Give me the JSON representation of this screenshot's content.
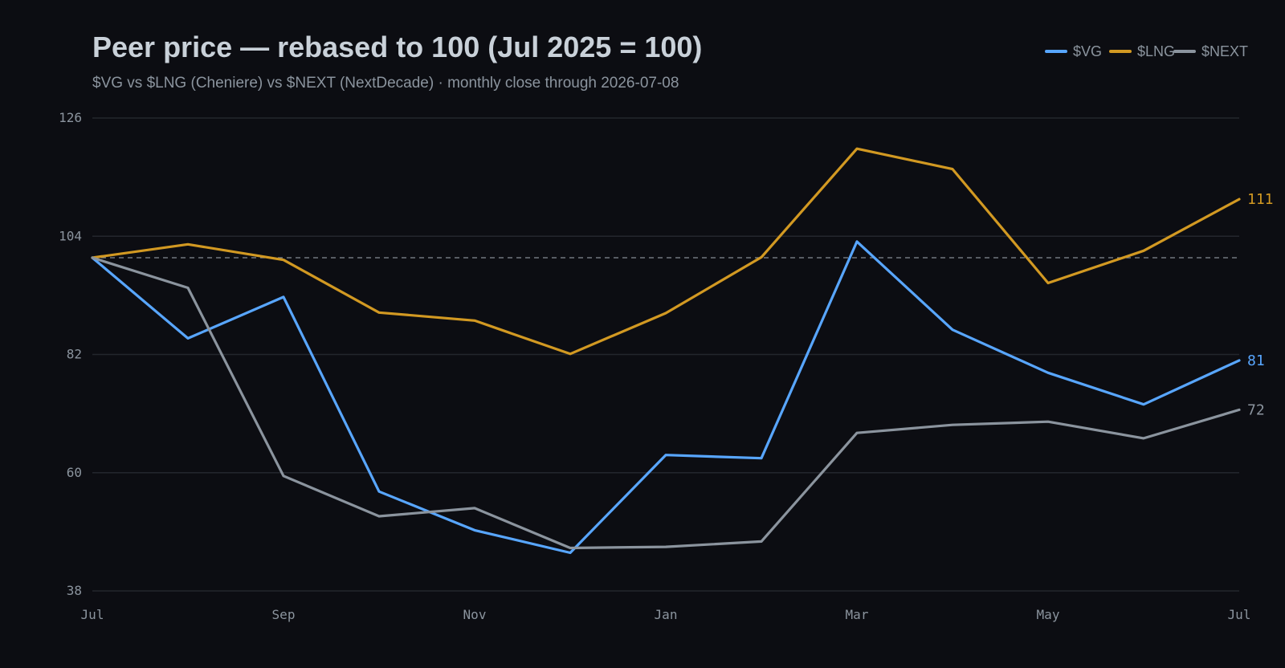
{
  "colors": {
    "background": "#0c0d12",
    "grid": "#23262d",
    "baseline": "#9aa1ab",
    "title": "#c9d1d9",
    "muted": "#8b949e"
  },
  "chart_data": {
    "type": "line",
    "title": "Peer price — rebased to 100 (Jul 2025 = 100)",
    "subtitle": "$VG vs $LNG (Cheniere) vs $NEXT (NextDecade) · monthly close through 2026-07-08",
    "x": [
      "2025-07",
      "2025-08",
      "2025-09",
      "2025-10",
      "2025-11",
      "2025-12",
      "2026-01",
      "2026-02",
      "2026-03",
      "2026-04",
      "2026-05",
      "2026-06",
      "2026-07"
    ],
    "x_ticks": [
      {
        "x": "2025-07",
        "label": "Jul"
      },
      {
        "x": "2025-09",
        "label": "Sep"
      },
      {
        "x": "2025-11",
        "label": "Nov"
      },
      {
        "x": "2026-01",
        "label": "Jan"
      },
      {
        "x": "2026-03",
        "label": "Mar"
      },
      {
        "x": "2026-05",
        "label": "May"
      },
      {
        "x": "2026-07",
        "label": "Jul"
      }
    ],
    "y_ticks": [
      38,
      60,
      82,
      104,
      126
    ],
    "ylim": [
      38,
      126
    ],
    "reference_line": 100,
    "grid": true,
    "legend_position": "top-right",
    "series": [
      {
        "name": "$VG",
        "color": "#58a6ff",
        "values": [
          100,
          85,
          92.7,
          56.5,
          49.3,
          45.1,
          63.3,
          62.7,
          103,
          86.6,
          78.6,
          72.7,
          80.9
        ],
        "end_label": "81"
      },
      {
        "name": "$LNG",
        "color": "#d29922",
        "values": [
          100,
          102.5,
          99.6,
          89.8,
          88.3,
          82.1,
          89.7,
          100.1,
          120.3,
          116.5,
          95.3,
          101.3,
          110.9
        ],
        "end_label": "111"
      },
      {
        "name": "$NEXT",
        "color": "#8b949e",
        "values": [
          100,
          94.4,
          59.4,
          51.9,
          53.4,
          46,
          46.2,
          47.2,
          67.4,
          68.9,
          69.5,
          66.4,
          71.7
        ],
        "end_label": "72"
      }
    ]
  }
}
